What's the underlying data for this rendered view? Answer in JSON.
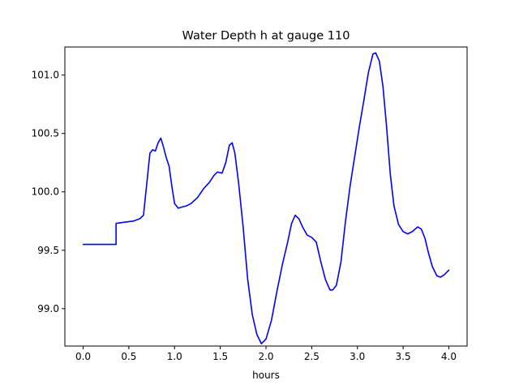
{
  "chart_data": {
    "type": "line",
    "title": "Water Depth h at gauge 110",
    "xlabel": "hours",
    "ylabel": "",
    "xlim": [
      -0.2,
      4.2
    ],
    "ylim": [
      98.68,
      101.24
    ],
    "xticks": [
      "0.0",
      "0.5",
      "1.0",
      "1.5",
      "2.0",
      "2.5",
      "3.0",
      "3.5",
      "4.0"
    ],
    "yticks": [
      "99.0",
      "99.5",
      "100.0",
      "100.5",
      "101.0"
    ],
    "grid": false,
    "series": [
      {
        "color": "#0000ff",
        "points": [
          [
            0.0,
            99.55
          ],
          [
            0.1,
            99.55
          ],
          [
            0.2,
            99.55
          ],
          [
            0.3,
            99.55
          ],
          [
            0.36,
            99.55
          ],
          [
            0.36,
            99.73
          ],
          [
            0.45,
            99.74
          ],
          [
            0.55,
            99.75
          ],
          [
            0.62,
            99.77
          ],
          [
            0.66,
            99.8
          ],
          [
            0.7,
            100.1
          ],
          [
            0.73,
            100.33
          ],
          [
            0.76,
            100.36
          ],
          [
            0.79,
            100.35
          ],
          [
            0.82,
            100.42
          ],
          [
            0.85,
            100.46
          ],
          [
            0.88,
            100.38
          ],
          [
            0.91,
            100.29
          ],
          [
            0.94,
            100.22
          ],
          [
            0.97,
            100.05
          ],
          [
            1.0,
            99.9
          ],
          [
            1.04,
            99.86
          ],
          [
            1.08,
            99.87
          ],
          [
            1.13,
            99.88
          ],
          [
            1.18,
            99.9
          ],
          [
            1.25,
            99.95
          ],
          [
            1.32,
            100.03
          ],
          [
            1.38,
            100.08
          ],
          [
            1.43,
            100.14
          ],
          [
            1.47,
            100.17
          ],
          [
            1.52,
            100.16
          ],
          [
            1.56,
            100.25
          ],
          [
            1.6,
            100.4
          ],
          [
            1.63,
            100.42
          ],
          [
            1.66,
            100.33
          ],
          [
            1.7,
            100.08
          ],
          [
            1.75,
            99.7
          ],
          [
            1.8,
            99.25
          ],
          [
            1.85,
            98.95
          ],
          [
            1.9,
            98.78
          ],
          [
            1.95,
            98.7
          ],
          [
            2.0,
            98.74
          ],
          [
            2.06,
            98.9
          ],
          [
            2.12,
            99.15
          ],
          [
            2.18,
            99.38
          ],
          [
            2.24,
            99.58
          ],
          [
            2.28,
            99.73
          ],
          [
            2.32,
            99.8
          ],
          [
            2.36,
            99.77
          ],
          [
            2.4,
            99.7
          ],
          [
            2.45,
            99.63
          ],
          [
            2.5,
            99.61
          ],
          [
            2.55,
            99.57
          ],
          [
            2.6,
            99.4
          ],
          [
            2.65,
            99.25
          ],
          [
            2.7,
            99.16
          ],
          [
            2.73,
            99.16
          ],
          [
            2.77,
            99.2
          ],
          [
            2.82,
            99.4
          ],
          [
            2.87,
            99.75
          ],
          [
            2.92,
            100.05
          ],
          [
            2.97,
            100.3
          ],
          [
            3.02,
            100.55
          ],
          [
            3.07,
            100.78
          ],
          [
            3.12,
            101.02
          ],
          [
            3.17,
            101.18
          ],
          [
            3.2,
            101.19
          ],
          [
            3.24,
            101.12
          ],
          [
            3.28,
            100.9
          ],
          [
            3.32,
            100.55
          ],
          [
            3.36,
            100.15
          ],
          [
            3.4,
            99.88
          ],
          [
            3.45,
            99.72
          ],
          [
            3.5,
            99.66
          ],
          [
            3.55,
            99.64
          ],
          [
            3.6,
            99.66
          ],
          [
            3.66,
            99.7
          ],
          [
            3.7,
            99.68
          ],
          [
            3.74,
            99.6
          ],
          [
            3.78,
            99.47
          ],
          [
            3.82,
            99.36
          ],
          [
            3.87,
            99.28
          ],
          [
            3.91,
            99.27
          ],
          [
            3.95,
            99.29
          ],
          [
            4.0,
            99.33
          ]
        ]
      }
    ]
  }
}
